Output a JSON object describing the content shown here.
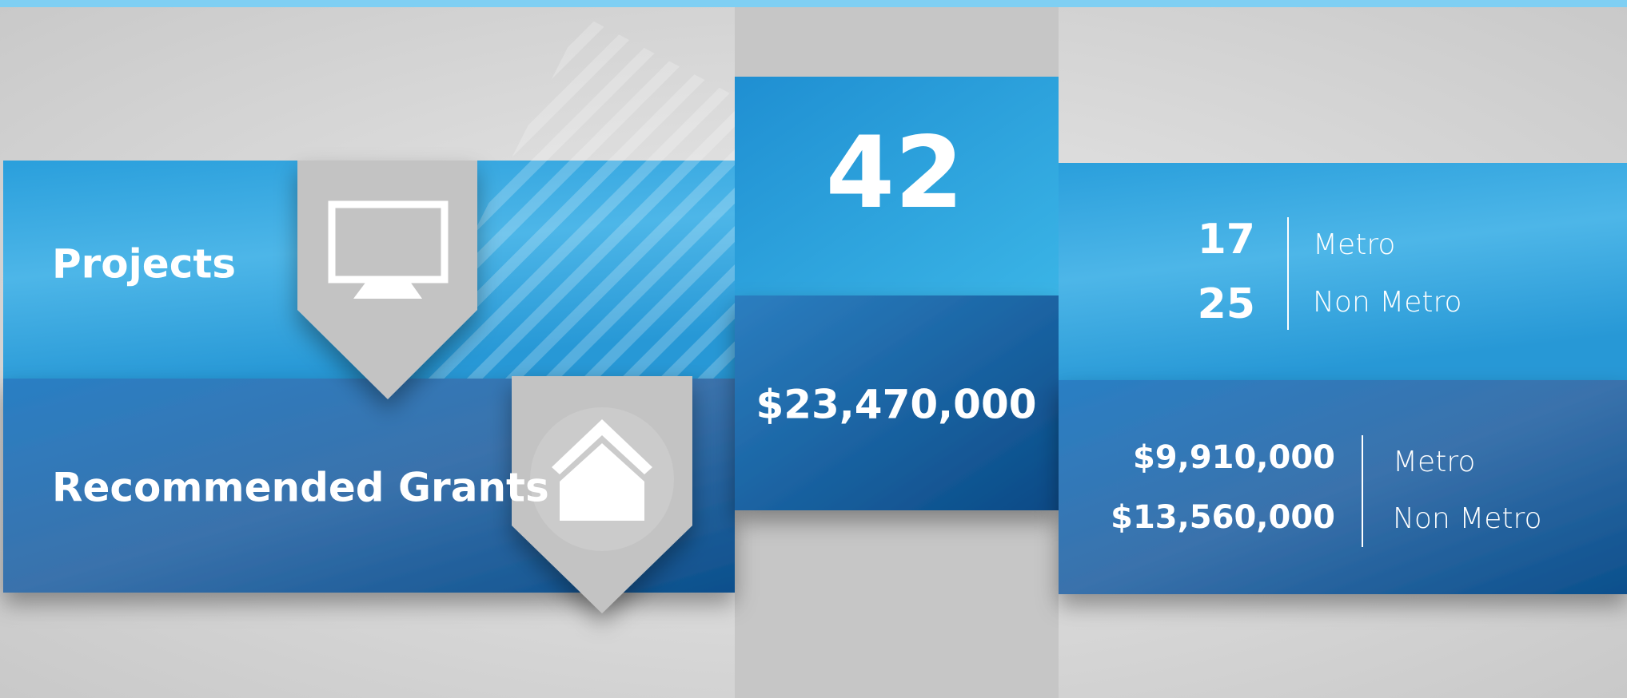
{
  "rows": [
    {
      "label": "Projects",
      "total": "42",
      "breakdown": [
        {
          "value": "17",
          "label": "Metro"
        },
        {
          "value": "25",
          "label": "Non Metro"
        }
      ]
    },
    {
      "label": "Recommended Grants",
      "total": "$23,470,000",
      "breakdown": [
        {
          "value": "$9,910,000",
          "label": "Metro"
        },
        {
          "value": "$13,560,000",
          "label": "Non Metro"
        }
      ]
    }
  ]
}
